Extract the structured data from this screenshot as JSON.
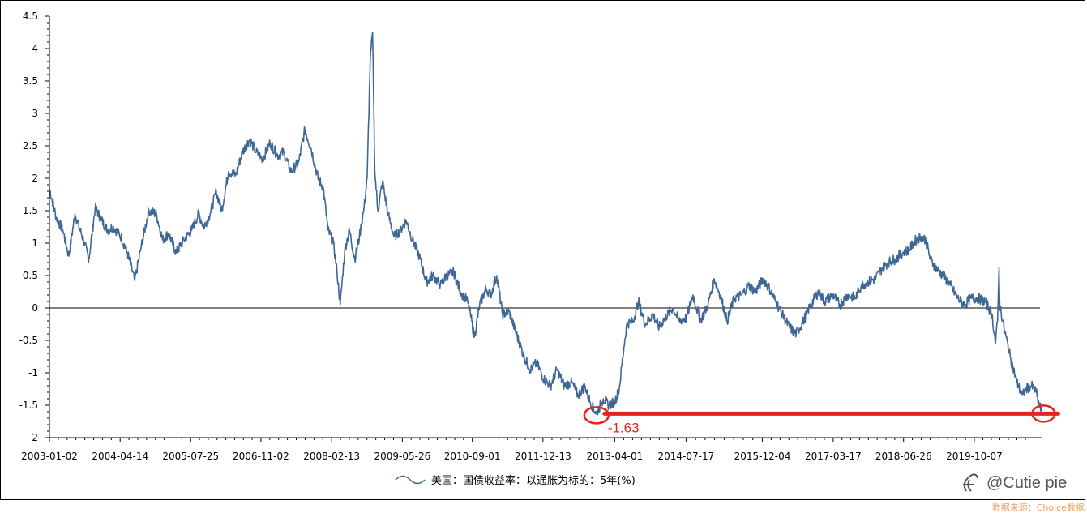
{
  "chart_data": {
    "type": "line",
    "xlabel": "",
    "ylabel": "",
    "ylim": [
      -2,
      4.5
    ],
    "yticks": [
      -2,
      -1.5,
      -1,
      -0.5,
      0,
      0.5,
      1,
      1.5,
      2,
      2.5,
      3,
      3.5,
      4,
      4.5
    ],
    "ytick_labels": [
      "-2",
      "-1.5",
      "-1",
      "-0.5",
      "0",
      "0.5",
      "1",
      "1.5",
      "2",
      "2.5",
      "3",
      "3.5",
      "4",
      "4.5"
    ],
    "xlim": [
      "2003-01-02",
      "2020-12-31"
    ],
    "xtick_labels": [
      "2003-01-02",
      "2004-04-14",
      "2005-07-25",
      "2006-11-02",
      "2008-02-13",
      "2009-05-26",
      "2010-09-01",
      "2011-12-13",
      "2013-04-01",
      "2014-07-17",
      "2015-12-04",
      "2017-03-17",
      "2018-06-26",
      "2019-10-07"
    ],
    "zero_line": true,
    "grid": false,
    "legend_position": "bottom-center",
    "series": [
      {
        "name": "美国：国债收益率：以通胀为标的：5年(%)",
        "color": "#3f6796",
        "points": [
          [
            "2003-01-02",
            1.85
          ],
          [
            "2003-02-15",
            1.4
          ],
          [
            "2003-04-01",
            1.2
          ],
          [
            "2003-05-10",
            0.8
          ],
          [
            "2003-06-20",
            1.45
          ],
          [
            "2003-08-15",
            1.05
          ],
          [
            "2003-09-20",
            0.75
          ],
          [
            "2003-11-01",
            1.55
          ],
          [
            "2003-12-15",
            1.35
          ],
          [
            "2004-01-20",
            1.2
          ],
          [
            "2004-03-01",
            1.25
          ],
          [
            "2004-04-20",
            1.1
          ],
          [
            "2004-06-01",
            0.85
          ],
          [
            "2004-07-20",
            0.42
          ],
          [
            "2004-09-01",
            0.95
          ],
          [
            "2004-10-20",
            1.5
          ],
          [
            "2004-12-10",
            1.45
          ],
          [
            "2005-01-20",
            1.05
          ],
          [
            "2005-03-01",
            1.15
          ],
          [
            "2005-04-20",
            0.85
          ],
          [
            "2005-06-10",
            1.05
          ],
          [
            "2005-08-01",
            1.2
          ],
          [
            "2005-09-15",
            1.45
          ],
          [
            "2005-10-20",
            1.25
          ],
          [
            "2005-12-01",
            1.45
          ],
          [
            "2006-01-10",
            1.8
          ],
          [
            "2006-02-15",
            1.5
          ],
          [
            "2006-04-01",
            2.1
          ],
          [
            "2006-05-20",
            2.05
          ],
          [
            "2006-07-01",
            2.4
          ],
          [
            "2006-08-20",
            2.6
          ],
          [
            "2006-10-01",
            2.4
          ],
          [
            "2006-11-15",
            2.3
          ],
          [
            "2007-01-01",
            2.55
          ],
          [
            "2007-02-20",
            2.35
          ],
          [
            "2007-04-01",
            2.4
          ],
          [
            "2007-05-20",
            2.1
          ],
          [
            "2007-07-10",
            2.25
          ],
          [
            "2007-08-20",
            2.75
          ],
          [
            "2007-10-01",
            2.45
          ],
          [
            "2007-11-15",
            2.0
          ],
          [
            "2007-12-20",
            1.85
          ],
          [
            "2008-01-20",
            1.2
          ],
          [
            "2008-02-25",
            1.0
          ],
          [
            "2008-03-20",
            0.55
          ],
          [
            "2008-04-10",
            0.05
          ],
          [
            "2008-05-10",
            0.9
          ],
          [
            "2008-06-10",
            1.2
          ],
          [
            "2008-07-15",
            0.75
          ],
          [
            "2008-08-15",
            1.1
          ],
          [
            "2008-09-15",
            1.55
          ],
          [
            "2008-10-05",
            2.0
          ],
          [
            "2008-10-25",
            3.8
          ],
          [
            "2008-11-10",
            4.25
          ],
          [
            "2008-11-25",
            2.1
          ],
          [
            "2008-12-15",
            1.5
          ],
          [
            "2009-01-15",
            1.95
          ],
          [
            "2009-02-20",
            1.45
          ],
          [
            "2009-04-01",
            1.1
          ],
          [
            "2009-05-15",
            1.2
          ],
          [
            "2009-06-20",
            1.35
          ],
          [
            "2009-08-01",
            1.05
          ],
          [
            "2009-09-15",
            0.8
          ],
          [
            "2009-11-01",
            0.4
          ],
          [
            "2009-12-15",
            0.5
          ],
          [
            "2010-02-01",
            0.35
          ],
          [
            "2010-03-15",
            0.5
          ],
          [
            "2010-05-01",
            0.55
          ],
          [
            "2010-06-15",
            0.25
          ],
          [
            "2010-08-01",
            0.1
          ],
          [
            "2010-08-20",
            -0.1
          ],
          [
            "2010-09-15",
            -0.45
          ],
          [
            "2010-10-20",
            0.05
          ],
          [
            "2010-12-01",
            0.3
          ],
          [
            "2011-01-01",
            0.2
          ],
          [
            "2011-02-10",
            0.5
          ],
          [
            "2011-03-20",
            -0.1
          ],
          [
            "2011-05-01",
            -0.05
          ],
          [
            "2011-06-20",
            -0.4
          ],
          [
            "2011-08-10",
            -0.75
          ],
          [
            "2011-09-20",
            -0.95
          ],
          [
            "2011-11-01",
            -0.85
          ],
          [
            "2011-12-20",
            -1.1
          ],
          [
            "2012-02-01",
            -1.2
          ],
          [
            "2012-03-15",
            -0.95
          ],
          [
            "2012-05-01",
            -1.2
          ],
          [
            "2012-06-20",
            -1.15
          ],
          [
            "2012-08-01",
            -1.35
          ],
          [
            "2012-09-15",
            -1.2
          ],
          [
            "2012-10-20",
            -1.45
          ],
          [
            "2012-12-01",
            -1.63
          ],
          [
            "2013-01-15",
            -1.4
          ],
          [
            "2013-02-20",
            -1.5
          ],
          [
            "2013-04-01",
            -1.45
          ],
          [
            "2013-05-01",
            -1.25
          ],
          [
            "2013-06-01",
            -0.6
          ],
          [
            "2013-06-20",
            -0.25
          ],
          [
            "2013-08-01",
            -0.2
          ],
          [
            "2013-09-05",
            0.1
          ],
          [
            "2013-10-20",
            -0.25
          ],
          [
            "2013-12-10",
            -0.1
          ],
          [
            "2014-01-20",
            -0.3
          ],
          [
            "2014-03-01",
            -0.15
          ],
          [
            "2014-04-20",
            0.0
          ],
          [
            "2014-06-01",
            -0.2
          ],
          [
            "2014-07-20",
            -0.15
          ],
          [
            "2014-09-01",
            0.2
          ],
          [
            "2014-10-20",
            -0.2
          ],
          [
            "2014-12-10",
            0.05
          ],
          [
            "2015-01-20",
            0.45
          ],
          [
            "2015-03-01",
            0.2
          ],
          [
            "2015-04-15",
            -0.2
          ],
          [
            "2015-06-01",
            0.15
          ],
          [
            "2015-07-20",
            0.2
          ],
          [
            "2015-09-01",
            0.35
          ],
          [
            "2015-10-20",
            0.25
          ],
          [
            "2015-12-10",
            0.45
          ],
          [
            "2016-01-20",
            0.3
          ],
          [
            "2016-03-01",
            0.1
          ],
          [
            "2016-04-15",
            -0.1
          ],
          [
            "2016-06-01",
            -0.3
          ],
          [
            "2016-07-15",
            -0.4
          ],
          [
            "2016-09-01",
            -0.2
          ],
          [
            "2016-10-20",
            0.05
          ],
          [
            "2016-12-10",
            0.25
          ],
          [
            "2017-01-20",
            0.1
          ],
          [
            "2017-03-15",
            0.2
          ],
          [
            "2017-05-01",
            0.05
          ],
          [
            "2017-06-20",
            0.2
          ],
          [
            "2017-08-10",
            0.15
          ],
          [
            "2017-09-20",
            0.35
          ],
          [
            "2017-11-01",
            0.4
          ],
          [
            "2017-12-20",
            0.45
          ],
          [
            "2018-02-01",
            0.6
          ],
          [
            "2018-03-15",
            0.7
          ],
          [
            "2018-05-01",
            0.75
          ],
          [
            "2018-06-20",
            0.85
          ],
          [
            "2018-08-01",
            0.9
          ],
          [
            "2018-09-15",
            1.05
          ],
          [
            "2018-10-20",
            1.1
          ],
          [
            "2018-11-20",
            1.05
          ],
          [
            "2018-12-20",
            0.75
          ],
          [
            "2019-02-01",
            0.6
          ],
          [
            "2019-03-15",
            0.5
          ],
          [
            "2019-05-01",
            0.35
          ],
          [
            "2019-06-20",
            0.15
          ],
          [
            "2019-08-01",
            0.05
          ],
          [
            "2019-09-15",
            0.15
          ],
          [
            "2019-11-01",
            0.15
          ],
          [
            "2019-12-20",
            0.1
          ],
          [
            "2020-02-01",
            -0.1
          ],
          [
            "2020-02-25",
            -0.55
          ],
          [
            "2020-03-09",
            -0.2
          ],
          [
            "2020-03-19",
            0.62
          ],
          [
            "2020-03-24",
            0.05
          ],
          [
            "2020-04-20",
            -0.3
          ],
          [
            "2020-06-01",
            -0.75
          ],
          [
            "2020-07-15",
            -1.15
          ],
          [
            "2020-08-20",
            -1.35
          ],
          [
            "2020-09-15",
            -1.25
          ],
          [
            "2020-10-20",
            -1.2
          ],
          [
            "2020-11-20",
            -1.3
          ],
          [
            "2020-12-10",
            -1.5
          ],
          [
            "2020-12-28",
            -1.6
          ]
        ]
      }
    ],
    "annotation": {
      "label": "-1.63",
      "value": -1.63,
      "from_date": "2012-12-01",
      "to_date": "2020-12-28",
      "color": "#e8231b"
    }
  },
  "watermark": {
    "text": "@Cutie pie"
  },
  "source": {
    "text": "数据来源：Choice数据"
  }
}
